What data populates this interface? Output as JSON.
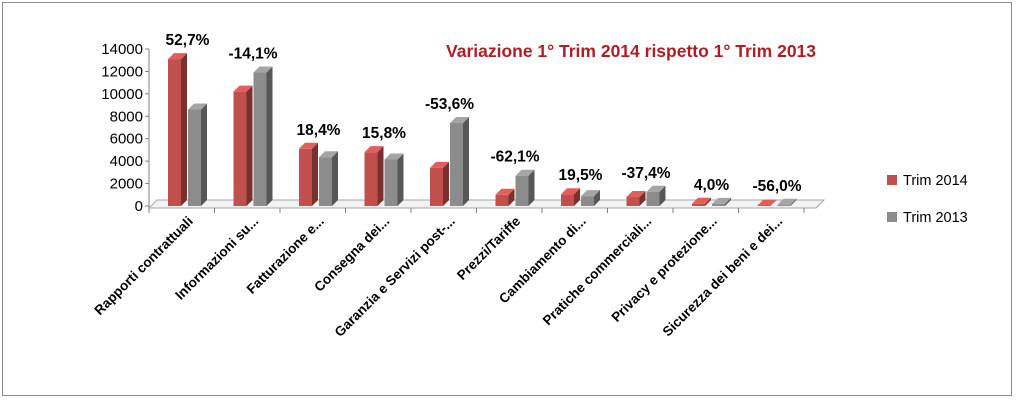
{
  "chart_data": {
    "type": "bar",
    "title": "Variazione 1° Trim 2014 rispetto 1° Trim 2013",
    "categories": [
      "Rapporti contrattuali",
      "Informazioni su...",
      "Fatturazione e...",
      "Consegna dei...",
      "Garanzia e Servizi post-...",
      "Prezzi/Tariffe",
      "Cambiamento di...",
      "Pratiche commerciali...",
      "Privacy e protezione...",
      "Sicurezza dei beni e dei..."
    ],
    "series": [
      {
        "name": "Trim 2014",
        "color": "#c0504d",
        "values": [
          13100,
          10200,
          5100,
          4800,
          3400,
          1000,
          1050,
          800,
          200,
          50
        ]
      },
      {
        "name": "Trim 2013",
        "color": "#8c8c8c",
        "values": [
          8600,
          11900,
          4350,
          4150,
          7400,
          2700,
          880,
          1270,
          190,
          110
        ]
      }
    ],
    "change_labels": [
      "52,7%",
      "-14,1%",
      "18,4%",
      "15,8%",
      "-53,6%",
      "-62,1%",
      "19,5%",
      "-37,4%",
      "4,0%",
      "-56,0%"
    ],
    "y_ticks": [
      "0",
      "2000",
      "4000",
      "6000",
      "8000",
      "10000",
      "12000",
      "14000"
    ],
    "ylim": [
      0,
      14000
    ],
    "legend_position": "right",
    "grid": false
  }
}
